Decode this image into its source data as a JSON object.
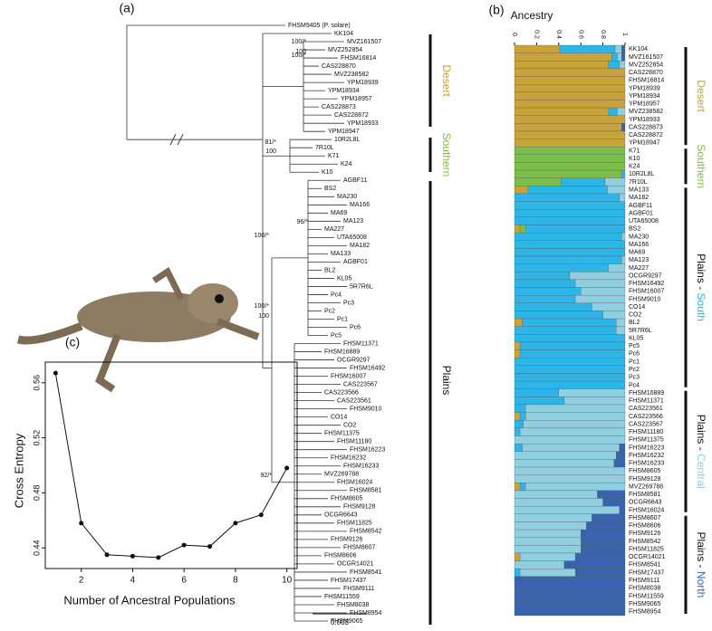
{
  "panels": [
    "(a)",
    "(b)",
    "(c)"
  ],
  "tree": {
    "leaves": [
      "FHSM9405 (P. solare)",
      "KK104",
      "MVZ161507",
      "MVZ252854",
      "FHSM16814",
      "CAS228870",
      "MVZ238582",
      "YPM18939",
      "YPM18934",
      "YPM18957",
      "CAS228873",
      "CAS228872",
      "YPM18933",
      "YPM18947",
      "10R2L8L",
      "7R10L",
      "K71",
      "K24",
      "K10",
      "AGBF11",
      "BS2",
      "MA230",
      "MA166",
      "MA69",
      "MA123",
      "MA227",
      "UTA65008",
      "MA182",
      "MA133",
      "AGBF01",
      "BL2",
      "KL05",
      "5R7R6L",
      "Pc4",
      "Pc3",
      "Pc2",
      "Pc1",
      "Pc6",
      "Pc5",
      "FHSM11371",
      "FHSM16889",
      "OCGR9297",
      "FHSM16492",
      "FHSM16007",
      "CAS223567",
      "CAS223566",
      "CAS223561",
      "FHSM9010",
      "CO14",
      "CO2",
      "FHSM11375",
      "FHSM11180",
      "FHSM16223",
      "FHSM16232",
      "FHSM16233",
      "MVZ269788",
      "FHSM16024",
      "FHSM8581",
      "FHSM8605",
      "FHSM9128",
      "OCGR6643",
      "FHSM11825",
      "FHSM8542",
      "FHSM9126",
      "FHSM8607",
      "FHSM8606",
      "OCGR14021",
      "FHSM8541",
      "FHSM17437",
      "FHSM9111",
      "FHSM11559",
      "FHSM8038",
      "FHSM8954",
      "FHSM9065"
    ],
    "supports": [
      "100/*",
      "100",
      "100/*",
      "81/*",
      "100",
      "96/*",
      "100/*",
      "100/*",
      "100",
      "92/*"
    ],
    "clades": [
      {
        "label": "Desert",
        "color": "#c8a23a"
      },
      {
        "label": "Southern",
        "color": "#7bbf4a"
      },
      {
        "label": "Plains",
        "color": "#111111"
      }
    ],
    "scale_bar": "0.003"
  },
  "ancestry": {
    "title": "Ancestry",
    "ticks": [
      0,
      0.2,
      0.4,
      0.6,
      0.8,
      1
    ],
    "colors": [
      "#c8a23a",
      "#7bbf4a",
      "#2db5e8",
      "#90cfe0",
      "#3a63ad"
    ],
    "samples": [
      "KK104",
      "MVZ161507",
      "MVZ252854",
      "CAS228870",
      "FHSM16814",
      "YPM18939",
      "YPM18934",
      "YPM18957",
      "MVZ238582",
      "YPM18933",
      "CAS228873",
      "CAS228872",
      "YPM18947",
      "K71",
      "K10",
      "K24",
      "10R2L8L",
      "7R10L",
      "MA133",
      "MA182",
      "AGBF11",
      "AGBF01",
      "UTA65008",
      "BS2",
      "MA230",
      "MA166",
      "MA69",
      "MA123",
      "MA227",
      "OCGR9297",
      "FHSM16492",
      "FHSM16007",
      "FHSM9010",
      "CO14",
      "CO2",
      "BL2",
      "5R7R6L",
      "KL05",
      "Pc5",
      "Pc6",
      "Pc1",
      "Pc2",
      "Pc3",
      "Pc4",
      "FHSM16889",
      "FHSM11371",
      "CAS223561",
      "CAS223566",
      "CAS223567",
      "FHSM11180",
      "FHSM11375",
      "FHSM16223",
      "FHSM16232",
      "FHSM16233",
      "FHSM8605",
      "FHSM9128",
      "MVZ269788",
      "FHSM8581",
      "OCGR6643",
      "FHSM16024",
      "FHSM8607",
      "FHSM8606",
      "FHSM9126",
      "FHSM8542",
      "FHSM11825",
      "OCGR14021",
      "FHSM8541",
      "FHSM17437",
      "FHSM9111",
      "FHSM8038",
      "FHSM11559",
      "FHSM9065",
      "FHSM8954"
    ],
    "proportions": [
      [
        0.41,
        0,
        0.5,
        0.06,
        0.03
      ],
      [
        0.88,
        0,
        0.05,
        0.04,
        0.03
      ],
      [
        0.85,
        0,
        0.1,
        0.05,
        0
      ],
      [
        1,
        0,
        0,
        0,
        0
      ],
      [
        1,
        0,
        0,
        0,
        0
      ],
      [
        1,
        0,
        0,
        0,
        0
      ],
      [
        1,
        0,
        0,
        0,
        0
      ],
      [
        1,
        0,
        0,
        0,
        0
      ],
      [
        0.85,
        0,
        0.08,
        0.07,
        0
      ],
      [
        1,
        0,
        0,
        0,
        0
      ],
      [
        0.97,
        0,
        0,
        0,
        0.03
      ],
      [
        1,
        0,
        0,
        0,
        0
      ],
      [
        1,
        0,
        0,
        0,
        0
      ],
      [
        0,
        1,
        0,
        0,
        0
      ],
      [
        0,
        1,
        0,
        0,
        0
      ],
      [
        0,
        1,
        0,
        0,
        0
      ],
      [
        0,
        0.97,
        0.03,
        0,
        0
      ],
      [
        0,
        0.42,
        0.4,
        0.18,
        0
      ],
      [
        0.12,
        0,
        0.72,
        0.16,
        0
      ],
      [
        0,
        0,
        0.95,
        0.05,
        0
      ],
      [
        0,
        0,
        1,
        0,
        0
      ],
      [
        0,
        0,
        1,
        0,
        0
      ],
      [
        0,
        0,
        1,
        0,
        0
      ],
      [
        0.05,
        0.05,
        0.9,
        0,
        0
      ],
      [
        0,
        0,
        0.97,
        0.03,
        0
      ],
      [
        0,
        0,
        1,
        0,
        0
      ],
      [
        0,
        0,
        1,
        0,
        0
      ],
      [
        0,
        0,
        0.97,
        0.03,
        0
      ],
      [
        0,
        0,
        0.85,
        0.15,
        0
      ],
      [
        0,
        0,
        0.5,
        0.5,
        0
      ],
      [
        0,
        0,
        0.55,
        0.45,
        0
      ],
      [
        0,
        0,
        0.6,
        0.4,
        0
      ],
      [
        0,
        0,
        0.55,
        0.45,
        0
      ],
      [
        0,
        0,
        0.7,
        0.3,
        0
      ],
      [
        0,
        0,
        0.8,
        0.2,
        0
      ],
      [
        0.07,
        0,
        0.85,
        0.08,
        0
      ],
      [
        0,
        0,
        0.92,
        0.08,
        0
      ],
      [
        0,
        0,
        1,
        0,
        0
      ],
      [
        0.05,
        0,
        0.95,
        0,
        0
      ],
      [
        0.05,
        0,
        0.95,
        0,
        0
      ],
      [
        0,
        0,
        1,
        0,
        0
      ],
      [
        0,
        0,
        1,
        0,
        0
      ],
      [
        0,
        0,
        1,
        0,
        0
      ],
      [
        0,
        0,
        1,
        0,
        0
      ],
      [
        0,
        0,
        0.4,
        0.6,
        0
      ],
      [
        0,
        0,
        0.45,
        0.55,
        0
      ],
      [
        0,
        0,
        0.1,
        0.9,
        0
      ],
      [
        0.05,
        0,
        0.05,
        0.9,
        0
      ],
      [
        0,
        0,
        0.08,
        0.92,
        0
      ],
      [
        0,
        0,
        0.05,
        0.95,
        0
      ],
      [
        0,
        0,
        0,
        1,
        0
      ],
      [
        0,
        0,
        0.07,
        0.88,
        0.05
      ],
      [
        0,
        0,
        0,
        0.92,
        0.08
      ],
      [
        0,
        0,
        0,
        0.9,
        0.1
      ],
      [
        0,
        0,
        0,
        1,
        0
      ],
      [
        0,
        0,
        0,
        1,
        0
      ],
      [
        0.05,
        0,
        0.05,
        0.9,
        0
      ],
      [
        0,
        0,
        0,
        0.75,
        0.25
      ],
      [
        0,
        0,
        0,
        0.8,
        0.2
      ],
      [
        0,
        0,
        0,
        0.95,
        0.05
      ],
      [
        0,
        0,
        0,
        0.7,
        0.3
      ],
      [
        0,
        0,
        0,
        0.65,
        0.35
      ],
      [
        0,
        0,
        0,
        0.6,
        0.4
      ],
      [
        0,
        0,
        0,
        0.6,
        0.4
      ],
      [
        0,
        0,
        0,
        0.6,
        0.4
      ],
      [
        0.05,
        0,
        0,
        0.5,
        0.45
      ],
      [
        0,
        0,
        0,
        0.45,
        0.55
      ],
      [
        0,
        0,
        0.05,
        0.5,
        0.45
      ],
      [
        0,
        0,
        0,
        0,
        1
      ],
      [
        0,
        0,
        0,
        0,
        1
      ],
      [
        0,
        0,
        0,
        0,
        1
      ],
      [
        0,
        0,
        0,
        0,
        1
      ],
      [
        0,
        0,
        0,
        0,
        1
      ]
    ],
    "groups": [
      {
        "label": "Desert",
        "color": "#c8a23a"
      },
      {
        "label": "Southern",
        "color": "#7bbf4a"
      },
      {
        "prefix": "Plains -",
        "label": "South",
        "color": "#2db5e8"
      },
      {
        "prefix": "Plains -",
        "label": "Central",
        "color": "#8fcde0"
      },
      {
        "prefix": "Plains -",
        "label": "North",
        "color": "#3a63ad"
      }
    ]
  },
  "chart_data": {
    "type": "line",
    "x_label": "Number of Ancestral Populations",
    "y_label": "Cross Entropy",
    "x": [
      1,
      2,
      3,
      4,
      5,
      6,
      7,
      8,
      9,
      10
    ],
    "values": [
      0.567,
      0.458,
      0.435,
      0.434,
      0.433,
      0.442,
      0.441,
      0.458,
      0.464,
      0.498
    ],
    "color": "#111111",
    "xlim": [
      0.6,
      10.4
    ],
    "ylim": [
      0.425,
      0.575
    ],
    "xticks": [
      2,
      4,
      6,
      8,
      10
    ],
    "yticks": [
      0.44,
      0.48,
      0.52,
      0.56
    ]
  }
}
